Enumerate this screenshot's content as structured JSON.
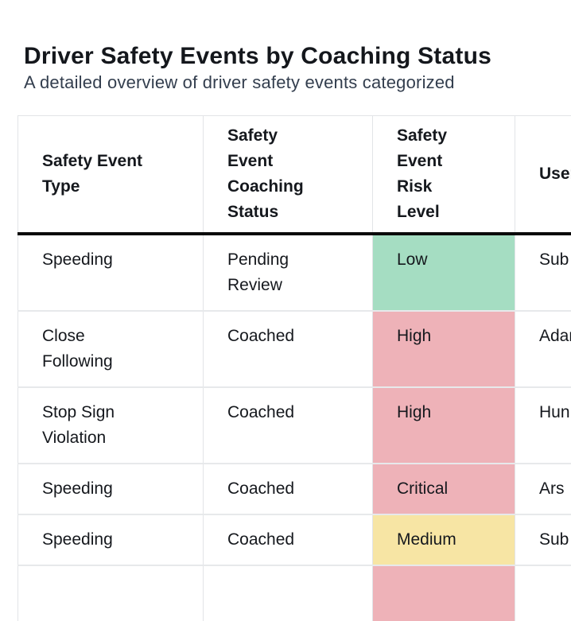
{
  "page": {
    "title": "Driver Safety Events by Coaching Status",
    "subtitle": "A detailed overview of driver safety events categorized"
  },
  "table": {
    "columns": [
      "Safety Event Type",
      "Safety Event Coaching Status",
      "Safety Event Risk Level",
      "User"
    ],
    "risk_colors": {
      "green": "#a5ddc2",
      "red": "#eeb2b8",
      "yellow": "#f7e5a4"
    },
    "rows": [
      {
        "event_type": "Speeding",
        "coaching_status": "Pending Review",
        "risk_level": "Low",
        "risk_color": "green",
        "user": "Sub"
      },
      {
        "event_type": "Close Following",
        "coaching_status": "Coached",
        "risk_level": "High",
        "risk_color": "red",
        "user": "Adam"
      },
      {
        "event_type": "Stop Sign Violation",
        "coaching_status": "Coached",
        "risk_level": "High",
        "risk_color": "red",
        "user": "Hun"
      },
      {
        "event_type": "Speeding",
        "coaching_status": "Coached",
        "risk_level": "Critical",
        "risk_color": "red",
        "user": "Ars"
      },
      {
        "event_type": "Speeding",
        "coaching_status": "Coached",
        "risk_level": "Medium",
        "risk_color": "yellow",
        "user": "Sub"
      },
      {
        "event_type": "",
        "coaching_status": "",
        "risk_level": "",
        "risk_color": "red",
        "user": ""
      }
    ]
  }
}
